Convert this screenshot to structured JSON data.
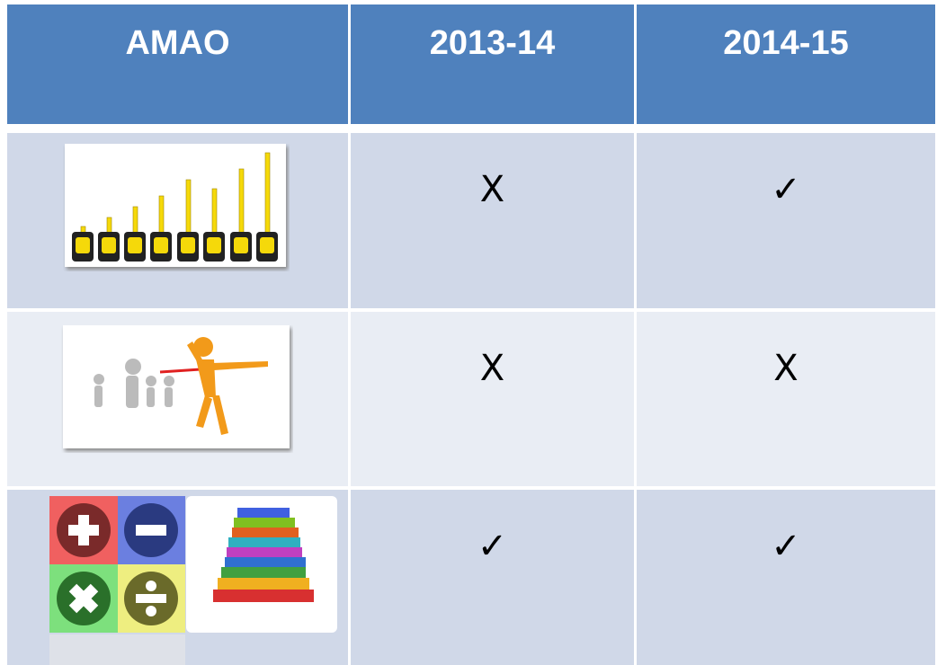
{
  "table": {
    "header": [
      "AMAO",
      "2013-14",
      "2014-15"
    ],
    "rows": [
      [
        "X",
        "✓"
      ],
      [
        "X",
        "X"
      ],
      [
        "✓",
        "✓"
      ]
    ]
  }
}
